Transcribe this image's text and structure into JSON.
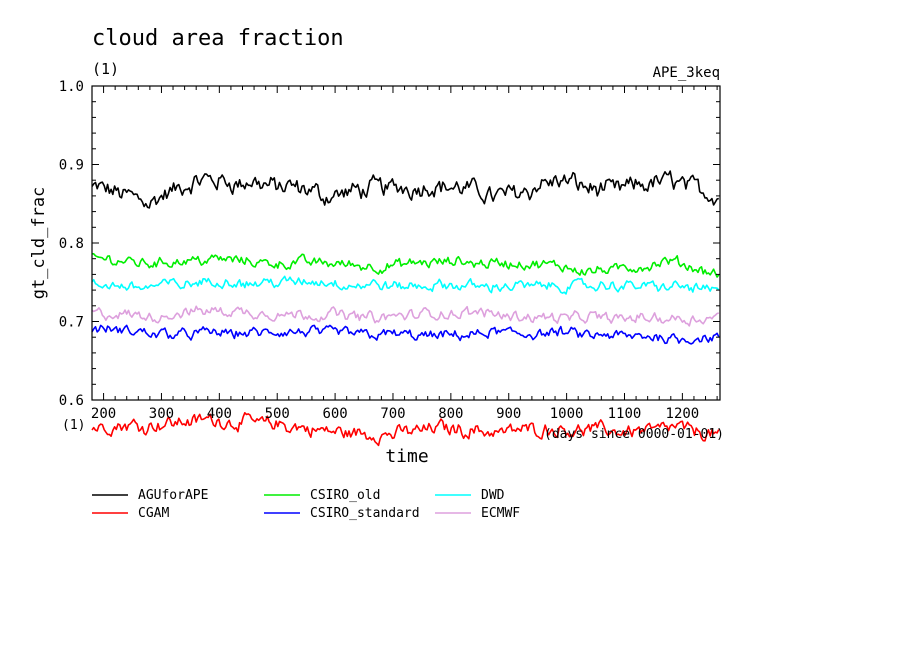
{
  "chart_data": {
    "type": "line",
    "title": "cloud area fraction",
    "subtitle": "(1)",
    "run_label": "APE_3keq",
    "ylabel": "gt_cld_frac",
    "yunit": "(1)",
    "xlabel": "time",
    "xunit": "(days since 0000-01-01)",
    "xlim": [
      180,
      1265
    ],
    "ylim": [
      0.6,
      1.0
    ],
    "xticks": [
      200,
      300,
      400,
      500,
      600,
      700,
      800,
      900,
      1000,
      1100,
      1200
    ],
    "yticks": [
      "0.6",
      "0.7",
      "0.8",
      "0.9",
      "1.0"
    ],
    "grid": false,
    "legend_position": "bottom",
    "series": [
      {
        "name": "AGUforAPE",
        "color": "#000000",
        "x": [
          180,
          280,
          380,
          480,
          580,
          680,
          780,
          880,
          980,
          1080,
          1180,
          1265
        ],
        "values": [
          0.87,
          0.855,
          0.88,
          0.875,
          0.86,
          0.87,
          0.875,
          0.86,
          0.88,
          0.865,
          0.88,
          0.86
        ]
      },
      {
        "name": "CGAM",
        "color": "#ff0000",
        "x": [
          180,
          280,
          380,
          480,
          580,
          680,
          780,
          880,
          980,
          1080,
          1180,
          1265
        ],
        "values": [
          0.565,
          0.57,
          0.575,
          0.57,
          0.56,
          0.555,
          0.565,
          0.56,
          0.565,
          0.56,
          0.565,
          0.555
        ]
      },
      {
        "name": "CSIRO_old",
        "color": "#00ee00",
        "x": [
          180,
          280,
          380,
          480,
          580,
          680,
          780,
          880,
          980,
          1080,
          1180,
          1265
        ],
        "values": [
          0.78,
          0.775,
          0.78,
          0.775,
          0.775,
          0.77,
          0.775,
          0.775,
          0.77,
          0.765,
          0.775,
          0.76
        ]
      },
      {
        "name": "CSIRO_standard",
        "color": "#0000ff",
        "x": [
          180,
          280,
          380,
          480,
          580,
          680,
          780,
          880,
          980,
          1080,
          1180,
          1265
        ],
        "values": [
          0.69,
          0.685,
          0.685,
          0.685,
          0.685,
          0.685,
          0.68,
          0.685,
          0.685,
          0.68,
          0.68,
          0.68
        ]
      },
      {
        "name": "DWD",
        "color": "#00ffff",
        "x": [
          180,
          280,
          380,
          480,
          580,
          680,
          780,
          880,
          980,
          1080,
          1180,
          1265
        ],
        "values": [
          0.745,
          0.745,
          0.75,
          0.75,
          0.75,
          0.745,
          0.745,
          0.745,
          0.745,
          0.745,
          0.745,
          0.74
        ]
      },
      {
        "name": "ECMWF",
        "color": "#dda0dd",
        "x": [
          180,
          280,
          380,
          480,
          580,
          680,
          780,
          880,
          980,
          1080,
          1180,
          1265
        ],
        "values": [
          0.71,
          0.705,
          0.715,
          0.71,
          0.71,
          0.705,
          0.71,
          0.71,
          0.705,
          0.705,
          0.705,
          0.705
        ]
      }
    ]
  }
}
